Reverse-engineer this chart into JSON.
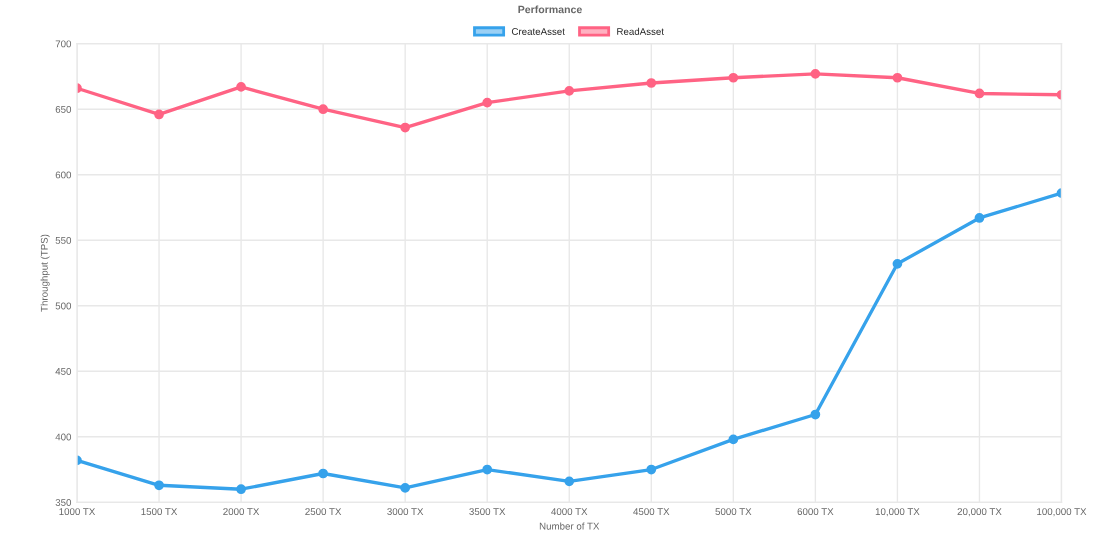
{
  "chart_data": {
    "type": "line",
    "title": "Performance",
    "xlabel": "Number of TX",
    "ylabel": "Throughput (TPS)",
    "categories": [
      "1000 TX",
      "1500 TX",
      "2000 TX",
      "2500 TX",
      "3000 TX",
      "3500 TX",
      "4000 TX",
      "4500 TX",
      "5000 TX",
      "6000 TX",
      "10,000 TX",
      "20,000 TX",
      "100,000 TX"
    ],
    "series": [
      {
        "name": "CreateAsset",
        "color": "#36a2eb",
        "values": [
          382,
          363,
          360,
          372,
          361,
          375,
          366,
          375,
          398,
          417,
          532,
          567,
          586
        ]
      },
      {
        "name": "ReadAsset",
        "color": "#ff6384",
        "values": [
          666,
          646,
          667,
          650,
          636,
          655,
          664,
          670,
          674,
          677,
          674,
          662,
          661
        ]
      }
    ],
    "ylim": [
      350,
      700
    ],
    "yticks": [
      350,
      400,
      450,
      500,
      550,
      600,
      650,
      700
    ],
    "grid": true,
    "legend": "top",
    "marker": "circle"
  }
}
